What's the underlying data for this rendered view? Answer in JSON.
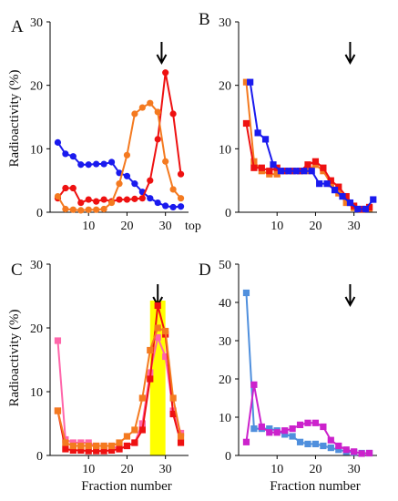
{
  "chart_data": [
    {
      "panel": "A",
      "type": "line",
      "ylabel": "Radioactivity (%)",
      "xlabel": "",
      "xlim": [
        0,
        36
      ],
      "ylim": [
        0,
        30
      ],
      "xticks": [
        10,
        20,
        30
      ],
      "yticks": [
        0,
        10,
        20,
        30
      ],
      "x_end_label": "top",
      "arrow_x": 29,
      "marker": "circle",
      "series": [
        {
          "color": "#1a1aee",
          "x": [
            2,
            4,
            6,
            8,
            10,
            12,
            14,
            16,
            18,
            20,
            22,
            24,
            26,
            28,
            30,
            32,
            34
          ],
          "y": [
            11,
            9.2,
            8.8,
            7.5,
            7.5,
            7.6,
            7.6,
            7.9,
            6.2,
            5.7,
            4.5,
            3.2,
            2.2,
            1.5,
            1,
            0.8,
            0.9
          ]
        },
        {
          "color": "#ee1111",
          "x": [
            2,
            4,
            6,
            8,
            10,
            12,
            14,
            16,
            18,
            20,
            22,
            24,
            26,
            28,
            30,
            32,
            34
          ],
          "y": [
            2.2,
            3.8,
            3.8,
            1.5,
            2,
            1.7,
            2,
            1.7,
            2,
            2,
            2.1,
            2.2,
            5,
            11.5,
            22,
            15.5,
            6
          ]
        },
        {
          "color": "#f47a20",
          "x": [
            2,
            4,
            6,
            8,
            10,
            12,
            14,
            16,
            18,
            20,
            22,
            24,
            26,
            28,
            30,
            32,
            34
          ],
          "y": [
            2.5,
            0.5,
            0.4,
            0.3,
            0.4,
            0.4,
            0.5,
            1.5,
            4.5,
            9,
            15.5,
            16.5,
            17.2,
            15.8,
            8,
            3.6,
            2.2
          ]
        }
      ]
    },
    {
      "panel": "B",
      "type": "line",
      "ylabel": "",
      "xlabel": "",
      "xlim": [
        0,
        36
      ],
      "ylim": [
        0,
        30
      ],
      "xticks": [
        10,
        20,
        30
      ],
      "yticks": [
        0,
        10,
        20,
        30
      ],
      "arrow_x": 29,
      "marker": "square",
      "series": [
        {
          "color": "#f47a20",
          "x": [
            2,
            4,
            6,
            8,
            10,
            12,
            14,
            16,
            18,
            20,
            22,
            24,
            26,
            28,
            30,
            32,
            34
          ],
          "y": [
            20.5,
            8,
            6.5,
            6,
            6,
            6.5,
            6.5,
            6.5,
            6.5,
            7.5,
            6.5,
            4.5,
            3,
            1.5,
            0.7,
            0.4,
            0.6
          ]
        },
        {
          "color": "#ee1111",
          "x": [
            2,
            4,
            6,
            8,
            10,
            12,
            14,
            16,
            18,
            20,
            22,
            24,
            26,
            28,
            30,
            32,
            34
          ],
          "y": [
            14,
            7,
            7,
            6.5,
            7,
            6.5,
            6.5,
            6.5,
            7.5,
            8,
            7,
            5,
            4,
            2.5,
            1,
            0.5,
            0.8
          ]
        },
        {
          "color": "#1a1aee",
          "x": [
            3,
            5,
            7,
            9,
            11,
            13,
            15,
            17,
            19,
            21,
            23,
            25,
            27,
            29,
            31,
            33,
            35
          ],
          "y": [
            20.5,
            12.5,
            11.5,
            7.5,
            6.5,
            6.5,
            6.5,
            6.5,
            6.5,
            4.5,
            4.5,
            3.5,
            2.5,
            1.5,
            0.5,
            0.5,
            2
          ]
        }
      ]
    },
    {
      "panel": "C",
      "type": "line",
      "ylabel": "Radioactivity (%)",
      "xlabel": "Fraction number",
      "xlim": [
        0,
        36
      ],
      "ylim": [
        0,
        30
      ],
      "xticks": [
        10,
        20,
        30
      ],
      "yticks": [
        0,
        10,
        20,
        30
      ],
      "arrow_x": 28,
      "highlight_x": [
        26,
        30
      ],
      "highlight_color": "#ffff00",
      "marker": "square",
      "series": [
        {
          "color": "#ff66aa",
          "x": [
            2,
            4,
            6,
            8,
            10,
            12,
            14,
            16,
            18,
            20,
            22,
            24,
            26,
            28,
            30,
            32,
            34
          ],
          "y": [
            18,
            2.5,
            2,
            2,
            2,
            1.5,
            1.5,
            1.5,
            1,
            1.5,
            2,
            5,
            13,
            18.5,
            15.5,
            7,
            3.5
          ]
        },
        {
          "color": "#ee1111",
          "x": [
            2,
            4,
            6,
            8,
            10,
            12,
            14,
            16,
            18,
            20,
            22,
            24,
            26,
            28,
            30,
            32,
            34
          ],
          "y": [
            7,
            1,
            0.8,
            0.8,
            0.7,
            0.7,
            0.7,
            0.8,
            1,
            1.5,
            2,
            4,
            12,
            23.5,
            19,
            6.5,
            2
          ]
        },
        {
          "color": "#f47a20",
          "x": [
            2,
            4,
            6,
            8,
            10,
            12,
            14,
            16,
            18,
            20,
            22,
            24,
            26,
            28,
            30,
            32,
            34
          ],
          "y": [
            7,
            2,
            1.5,
            1.5,
            1.5,
            1.5,
            1.5,
            1.5,
            2,
            3,
            4,
            9,
            16.5,
            20,
            19.5,
            9,
            3
          ]
        }
      ]
    },
    {
      "panel": "D",
      "type": "line",
      "ylabel": "",
      "xlabel": "Fraction number",
      "xlim": [
        0,
        36
      ],
      "ylim": [
        0,
        50
      ],
      "xticks": [
        10,
        20,
        30
      ],
      "yticks": [
        0,
        10,
        20,
        30,
        40,
        50
      ],
      "arrow_x": 29,
      "marker": "square",
      "series": [
        {
          "color": "#4f8fdd",
          "x": [
            2,
            4,
            6,
            8,
            10,
            12,
            14,
            16,
            18,
            20,
            22,
            24,
            26,
            28,
            30,
            32,
            34
          ],
          "y": [
            42.5,
            7,
            7,
            7,
            6.5,
            5.5,
            5,
            3.5,
            3,
            3,
            2.5,
            2,
            1.5,
            1,
            0.8,
            0.6,
            0.6
          ]
        },
        {
          "color": "#cc22cc",
          "x": [
            2,
            4,
            6,
            8,
            10,
            12,
            14,
            16,
            18,
            20,
            22,
            24,
            26,
            28,
            30,
            32,
            34
          ],
          "y": [
            3.5,
            18.5,
            7.5,
            6,
            6,
            6.5,
            7,
            8,
            8.5,
            8.5,
            7.5,
            4,
            2.5,
            1.5,
            1,
            0.5,
            0.6
          ]
        }
      ]
    }
  ]
}
